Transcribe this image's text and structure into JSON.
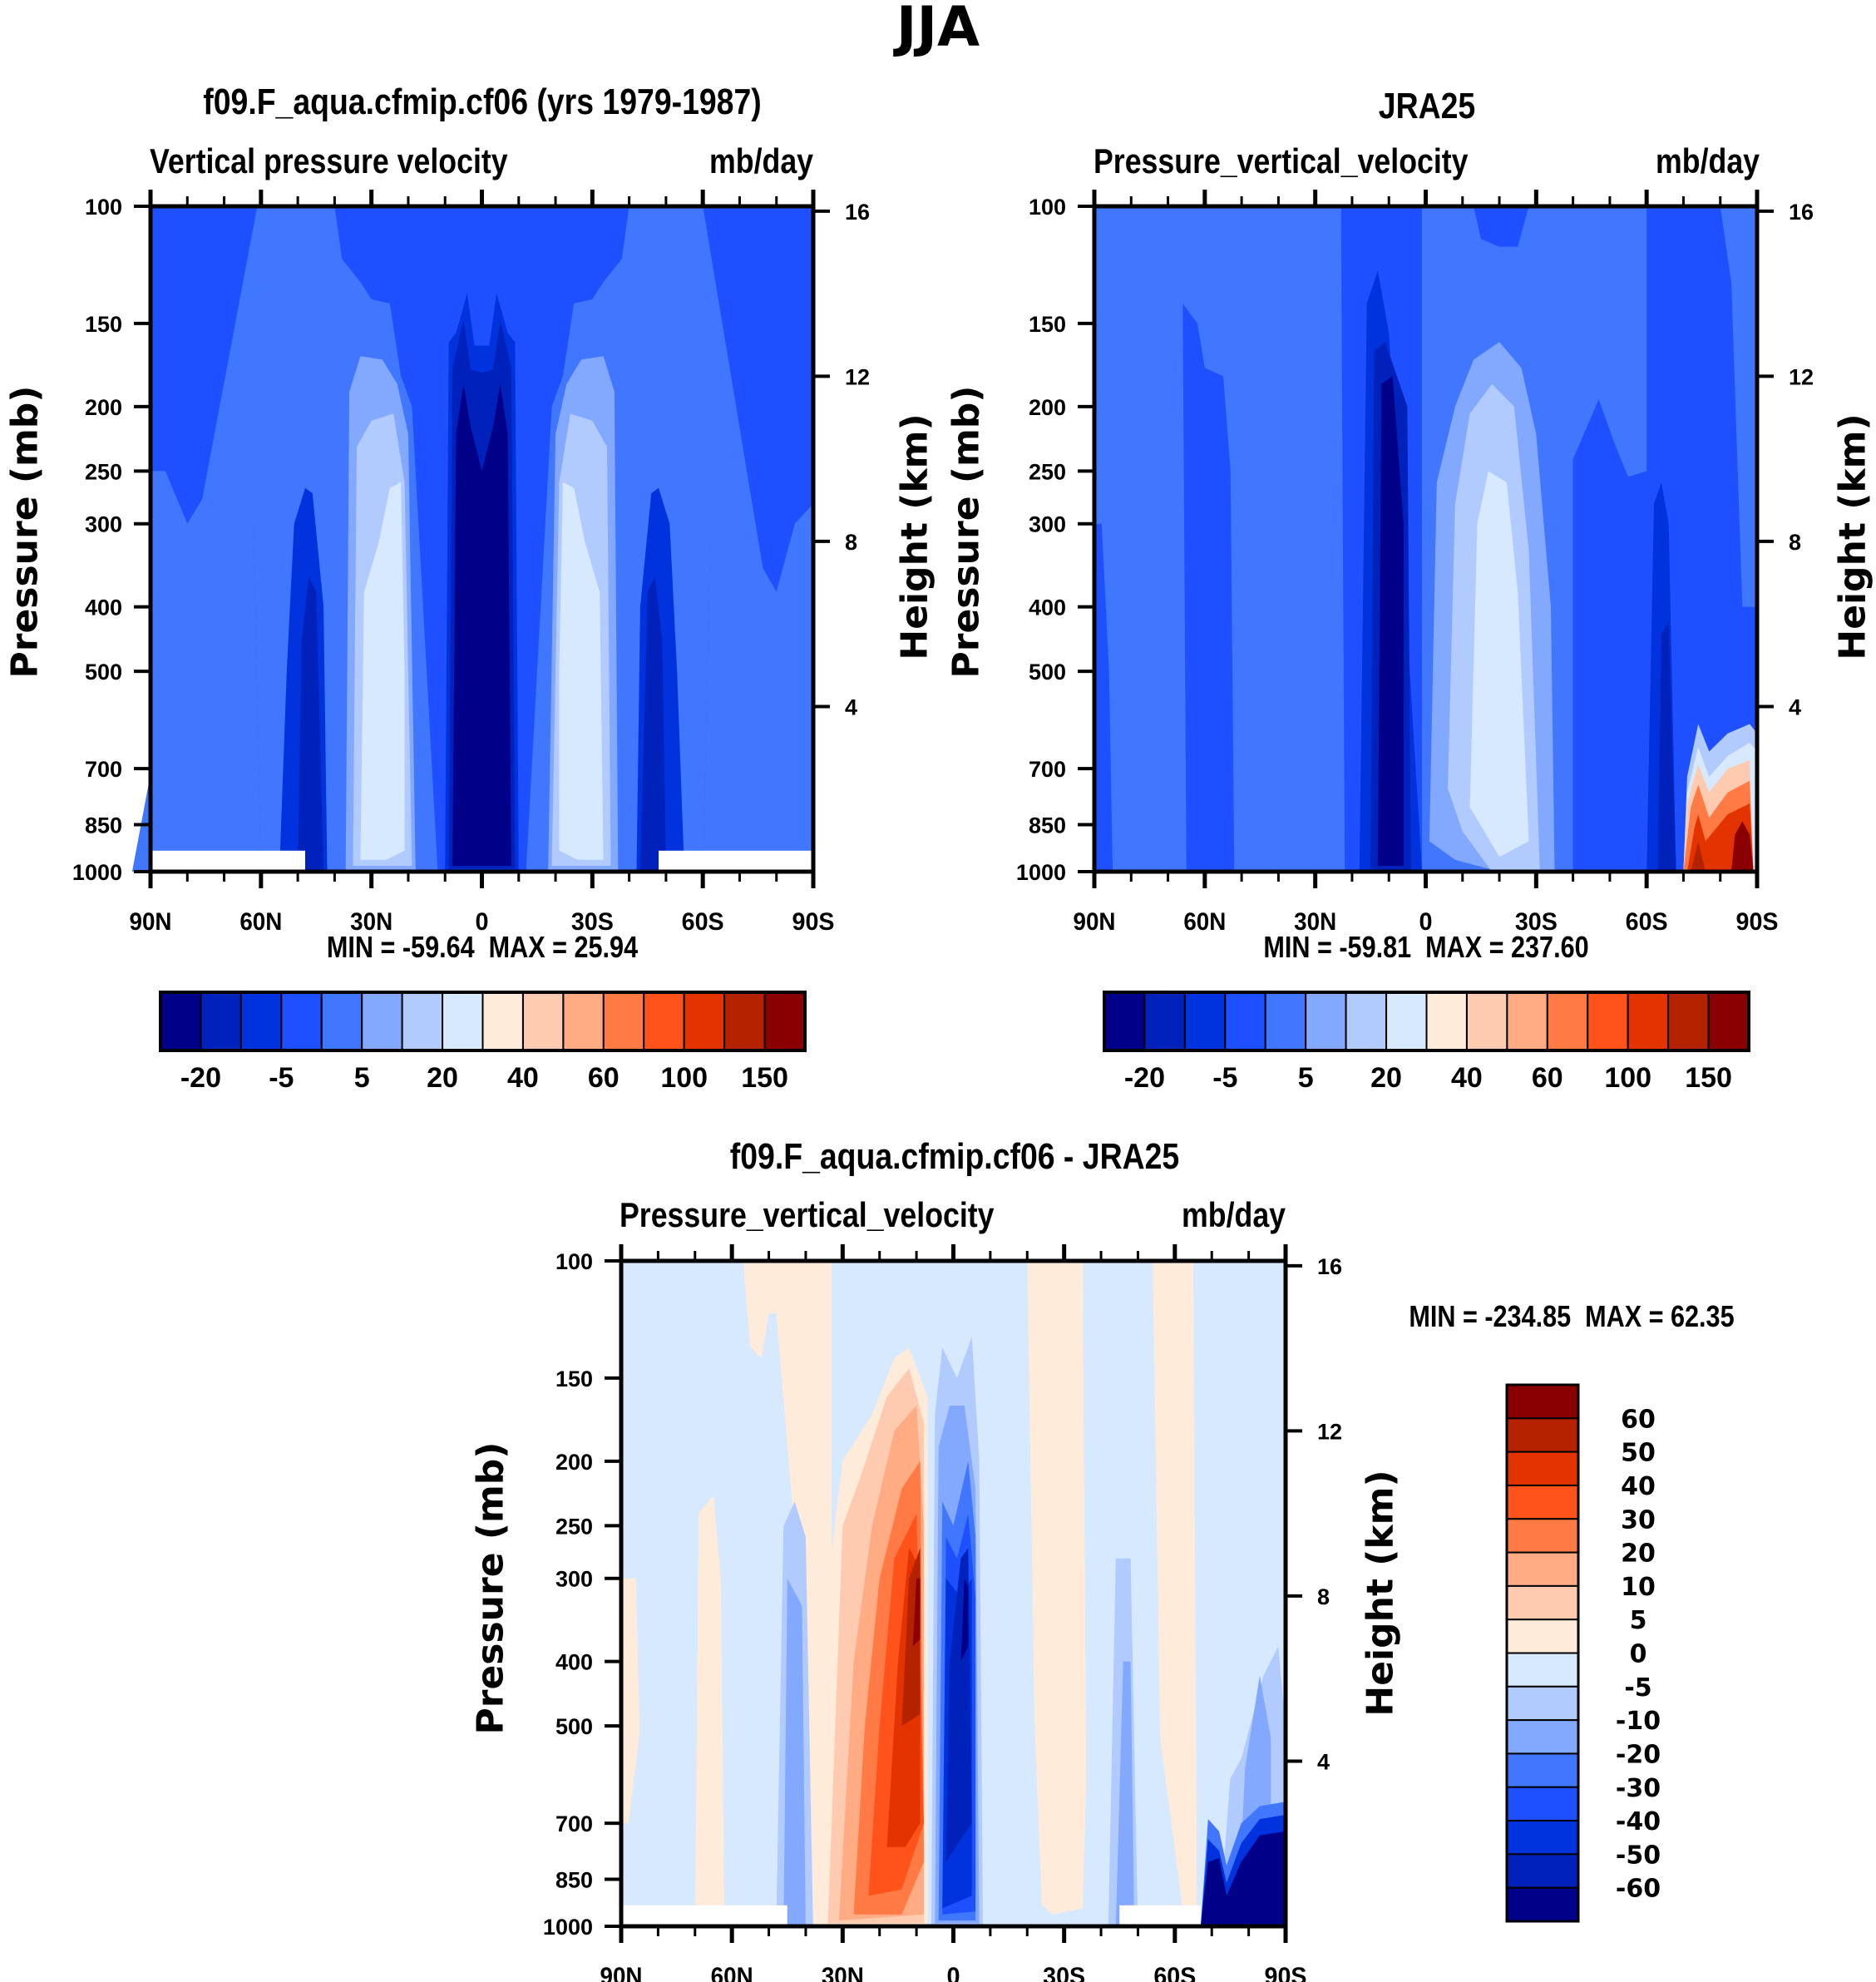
{
  "figure_title": "JJA",
  "colors": {
    "levels16": [
      "#000088",
      "#0022bb",
      "#0033dd",
      "#1e50ff",
      "#4177ff",
      "#83a9ff",
      "#b2cbff",
      "#d6e9ff",
      "#ffebd9",
      "#ffcbb0",
      "#ffab84",
      "#ff7a45",
      "#ff531b",
      "#e33300",
      "#b52200",
      "#8a0000"
    ]
  },
  "chart_data": [
    {
      "type": "heatmap",
      "name": "model",
      "title": "f09.F_aqua.cfmip.cf06 (yrs 1979-1987)",
      "left_string": "Vertical pressure velocity",
      "right_string": "mb/day",
      "xlabel": "",
      "ylabel": "Pressure (mb)",
      "y2label": "Height (km)",
      "x_ticks": [
        "90N",
        "60N",
        "30N",
        "0",
        "30S",
        "60S",
        "90S"
      ],
      "x_range": [
        90,
        -90
      ],
      "y_ticks": [
        "100",
        "150",
        "200",
        "250",
        "300",
        "400",
        "500",
        "700",
        "850",
        "1000"
      ],
      "y_range_mb": [
        1000,
        100
      ],
      "y_scale": "log",
      "y2_ticks": [
        "16",
        "12",
        "8",
        "4"
      ],
      "min_label": "MIN = -59.64",
      "max_label": "MAX =  25.94",
      "min": -59.64,
      "max": 25.94,
      "colorbar": {
        "orientation": "horizontal",
        "labels": [
          "-20",
          "-5",
          "5",
          "20",
          "40",
          "60",
          "100",
          "150"
        ],
        "levels": [
          -40,
          -20,
          -10,
          -5,
          0,
          5,
          10,
          20,
          30,
          40,
          50,
          60,
          80,
          100,
          120,
          150
        ],
        "n_colors": 16
      },
      "features": [
        {
          "desc": "strong ascent core at equator",
          "lat_range": [
            5,
            -5
          ],
          "p_range": [
            1000,
            175
          ],
          "value": "< -40"
        },
        {
          "desc": "subtropical descent maxima",
          "lat": [
            20,
            -20
          ],
          "value": "~20 to 30"
        },
        {
          "desc": "midlatitude ascent bands",
          "lat": [
            45,
            -45
          ],
          "value": "-20 to -40"
        },
        {
          "desc": "masked below surface",
          "lat_range_N": [
            90,
            48
          ],
          "lat_range_S": [
            -48,
            -90
          ],
          "p_range": [
            1000,
            925
          ]
        }
      ]
    },
    {
      "type": "heatmap",
      "name": "obs",
      "title": "JRA25",
      "left_string": "Pressure_vertical_velocity",
      "right_string": "mb/day",
      "ylabel": "Pressure (mb)",
      "y2label": "Height (km)",
      "x_ticks": [
        "90N",
        "60N",
        "30N",
        "0",
        "30S",
        "60S",
        "90S"
      ],
      "x_range": [
        90,
        -90
      ],
      "y_ticks": [
        "100",
        "150",
        "200",
        "250",
        "300",
        "400",
        "500",
        "700",
        "850",
        "1000"
      ],
      "y_range_mb": [
        1000,
        100
      ],
      "y_scale": "log",
      "y2_ticks": [
        "16",
        "12",
        "8",
        "4"
      ],
      "min_label": "MIN = -59.81",
      "max_label": "MAX = 237.60",
      "min": -59.81,
      "max": 237.6,
      "colorbar": {
        "orientation": "horizontal",
        "labels": [
          "-20",
          "-5",
          "5",
          "20",
          "40",
          "60",
          "100",
          "150"
        ],
        "levels": [
          -40,
          -20,
          -10,
          -5,
          0,
          5,
          10,
          20,
          30,
          40,
          50,
          60,
          80,
          100,
          120,
          150
        ],
        "n_colors": 16
      },
      "features": [
        {
          "desc": "ascent core north of equator",
          "lat_range": [
            15,
            0
          ],
          "p_range": [
            1000,
            185
          ],
          "value": "< -40"
        },
        {
          "desc": "southern subtropical descent",
          "lat": -20,
          "value": "~20 to 30"
        },
        {
          "desc": "Antarctic low-level descent",
          "lat_range": [
            -68,
            -90
          ],
          "p_range": [
            1000,
            650
          ],
          "value": "up to 237.6"
        }
      ]
    },
    {
      "type": "heatmap",
      "name": "difference",
      "title": "f09.F_aqua.cfmip.cf06 - JRA25",
      "left_string": "Pressure_vertical_velocity",
      "right_string": "mb/day",
      "ylabel": "Pressure (mb)",
      "y2label": "Height (km)",
      "x_ticks": [
        "90N",
        "60N",
        "30N",
        "0",
        "30S",
        "60S",
        "90S"
      ],
      "x_range": [
        90,
        -90
      ],
      "y_ticks": [
        "100",
        "150",
        "200",
        "250",
        "300",
        "400",
        "500",
        "700",
        "850",
        "1000"
      ],
      "y_range_mb": [
        1000,
        100
      ],
      "y_scale": "log",
      "y2_ticks": [
        "16",
        "12",
        "8",
        "4"
      ],
      "min_label": "MIN = -234.85",
      "max_label": "MAX =  62.35",
      "min": -234.85,
      "max": 62.35,
      "colorbar": {
        "orientation": "vertical",
        "labels": [
          "60",
          "50",
          "40",
          "30",
          "20",
          "10",
          "5",
          "0",
          "-5",
          "-10",
          "-20",
          "-30",
          "-40",
          "-50",
          "-60"
        ],
        "levels": [
          -60,
          -50,
          -40,
          -30,
          -20,
          -10,
          -5,
          0,
          5,
          10,
          20,
          30,
          40,
          50,
          60
        ],
        "n_colors": 16
      },
      "features": [
        {
          "desc": "positive difference band",
          "lat_range": [
            30,
            5
          ],
          "value": "up to ~62"
        },
        {
          "desc": "negative difference band",
          "lat_range": [
            5,
            -10
          ],
          "value": "to < -50"
        },
        {
          "desc": "Antarctic low-level negative",
          "lat_range": [
            -65,
            -90
          ],
          "p_range": [
            1000,
            650
          ],
          "value": "< -60"
        }
      ]
    }
  ]
}
